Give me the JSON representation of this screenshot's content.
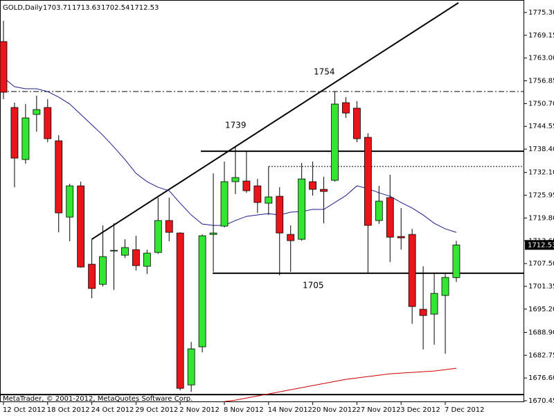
{
  "chart_data": {
    "type": "candlestick",
    "title": "GOLD,Daily",
    "header_values": [
      1703.71,
      1713.63,
      1702.54,
      1712.53
    ],
    "footer": "MetaTrader, © 2001-2012, MetaQuotes Software Corp.",
    "categories": [
      "12 Oct 2012",
      null,
      null,
      null,
      "18 Oct 2012",
      null,
      null,
      null,
      "24 Oct 2012",
      null,
      null,
      null,
      "29 Oct 2012",
      null,
      null,
      null,
      "2 Nov 2012",
      null,
      null,
      null,
      "8 Nov 2012",
      null,
      null,
      null,
      "14 Nov 2012",
      null,
      null,
      null,
      "20 Nov 2012",
      null,
      null,
      null,
      "27 Nov 2012",
      null,
      null,
      null,
      "3 Dec 2012",
      null,
      null,
      null,
      "7 Dec 2012",
      null
    ],
    "open": [
      1767.44,
      1749.64,
      1735.6,
      1747.77,
      1749.64,
      1740.65,
      1720.05,
      1728.48,
      1707.32,
      1701.89,
      1710.88,
      1709.75,
      1711.25,
      1706.76,
      1710.5,
      1719.12,
      1715.75,
      1674.73,
      1685.03,
      1715.37,
      1717.62,
      1729.61,
      1729.79,
      1728.48,
      1723.8,
      1725.67,
      1715.37,
      1714.06,
      1729.61,
      1727.54,
      1729.98,
      1750.95,
      1749.46,
      1741.59,
      1719.12,
      1725.3,
      1714.81,
      1715.37,
      1695.15,
      1693.84,
      1698.89,
      1703.71
    ],
    "high": [
      1773.05,
      1750.95,
      1750.58,
      1752.83,
      1751.89,
      1742.15,
      1729.04,
      1729.61,
      1714.06,
      1717.81,
      1718.37,
      1714.06,
      1715.0,
      1711.25,
      1725.3,
      1725.3,
      1715.93,
      1686.34,
      1715.37,
      1731.85,
      1735.04,
      1738.97,
      1737.84,
      1730.35,
      1733.72,
      1728.11,
      1717.81,
      1734.66,
      1735.04,
      1730.92,
      1753.95,
      1752.45,
      1751.33,
      1742.71,
      1728.48,
      1731.48,
      1722.49,
      1716.87,
      1706.76,
      1705.07,
      1704.7,
      1713.63
    ],
    "low": [
      1751.89,
      1728.11,
      1734.47,
      1743.09,
      1740.28,
      1715.93,
      1713.5,
      1706.38,
      1698.14,
      1701.33,
      1700.39,
      1709.0,
      1705.64,
      1704.7,
      1710.13,
      1713.5,
      1673.24,
      1672.86,
      1683.54,
      1705.26,
      1717.25,
      1726.24,
      1726.61,
      1721.18,
      1720.62,
      1704.32,
      1705.26,
      1713.68,
      1725.86,
      1718.37,
      1729.61,
      1746.83,
      1740.28,
      1705.07,
      1718.18,
      1707.88,
      1711.25,
      1691.21,
      1684.29,
      1685.6,
      1683.16,
      1702.54
    ],
    "close": [
      1753.76,
      1735.97,
      1746.83,
      1749.08,
      1741.22,
      1721.18,
      1728.48,
      1706.57,
      1700.77,
      1709.38,
      1711.07,
      1711.82,
      1706.94,
      1710.32,
      1719.12,
      1715.93,
      1673.8,
      1684.47,
      1715.0,
      1715.75,
      1729.61,
      1730.73,
      1727.17,
      1723.99,
      1725.49,
      1715.75,
      1713.68,
      1730.35,
      1727.54,
      1726.98,
      1750.58,
      1748.14,
      1741.22,
      1717.81,
      1724.36,
      1714.62,
      1714.44,
      1695.9,
      1693.47,
      1699.45,
      1703.76,
      1712.53
    ],
    "up_color": "#32e632",
    "down_color": "#e8151b",
    "overlays": [
      {
        "color": "#1a1a8c",
        "values": [
          1757.7,
          1755.26,
          1754.7,
          1754.7,
          1753.95,
          1752.45,
          1750.58,
          1747.77,
          1744.96,
          1742.15,
          1738.97,
          1735.6,
          1731.85,
          1729.61,
          1728.11,
          1727.17,
          1723.8,
          1720.62,
          1718.18,
          1717.81,
          1717.81,
          1719.12,
          1720.24,
          1720.62,
          1720.99,
          1720.62,
          1721.37,
          1721.55,
          1722.12,
          1722.12,
          1723.99,
          1725.86,
          1728.48,
          1727.73,
          1726.61,
          1725.67,
          1723.99,
          1722.49,
          1720.62,
          1718.37,
          1716.87,
          1715.93
        ]
      },
      {
        "color": "#cc0000",
        "values": [
          null,
          null,
          null,
          null,
          null,
          null,
          null,
          null,
          null,
          null,
          null,
          null,
          null,
          null,
          null,
          null,
          null,
          null,
          null,
          null,
          1670.24,
          1670.62,
          1671.18,
          1671.74,
          1672.3,
          1672.86,
          1673.42,
          1673.98,
          1674.55,
          1675.11,
          1675.67,
          1676.23,
          1676.61,
          1676.98,
          1677.36,
          1677.73,
          1677.92,
          1678.11,
          1678.29,
          1678.48,
          1678.86,
          1679.23
        ]
      }
    ],
    "levels": [
      {
        "value": 1753.95,
        "style": "dashdot"
      },
      {
        "value": 1737.84,
        "style": "solid"
      },
      {
        "value": 1733.72,
        "style": "dotted"
      },
      {
        "value": 1704.89,
        "style": "solid"
      },
      {
        "value": 1672.11,
        "style": "solid"
      }
    ],
    "trendline": [
      1714.06,
      1777.92
    ],
    "annotations": [
      "1754",
      "1739",
      "1705"
    ],
    "last_price": 1712.53,
    "ylim": [
      1670.08,
      1778.67
    ],
    "yticks": [
      {
        "value": 1775.3,
        "label": "1775.30"
      },
      1769.15,
      {
        "value": 1763.0,
        "label": "1763.00"
      },
      1756.85,
      {
        "value": 1750.7,
        "label": "1750.70"
      },
      1744.55,
      {
        "value": 1738.4,
        "label": "1738.40"
      },
      {
        "value": 1732.1,
        "label": "1732.10"
      },
      1725.95,
      {
        "value": 1719.8,
        "label": "1719.80"
      },
      1713.65,
      {
        "value": 1707.5,
        "label": "1707.50"
      },
      1701.35,
      {
        "value": 1695.2,
        "label": "1695.20"
      },
      {
        "value": 1688.9,
        "label": "1688.90"
      },
      1682.75,
      {
        "value": 1676.6,
        "label": "1676.60"
      },
      1670.45
    ]
  }
}
